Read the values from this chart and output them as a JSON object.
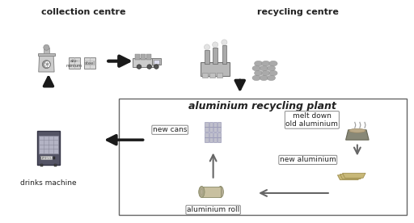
{
  "bg_color": "#ffffff",
  "box_border": "#888888",
  "title": "aluminium recycling plant",
  "title_fontsize": 9,
  "label_collection": "collection centre",
  "label_recycling": "recycling centre",
  "label_drinks": "drinks machine",
  "label_new_cans": "new cans",
  "label_melt": "melt down\nold aluminium",
  "label_new_al": "new aluminium",
  "label_al_roll": "aluminium roll",
  "label_fontsize": 8,
  "small_label_fontsize": 6.5,
  "text_color": "#222222",
  "arrow_color": "#222222",
  "outline_arrow_color": "#888888"
}
